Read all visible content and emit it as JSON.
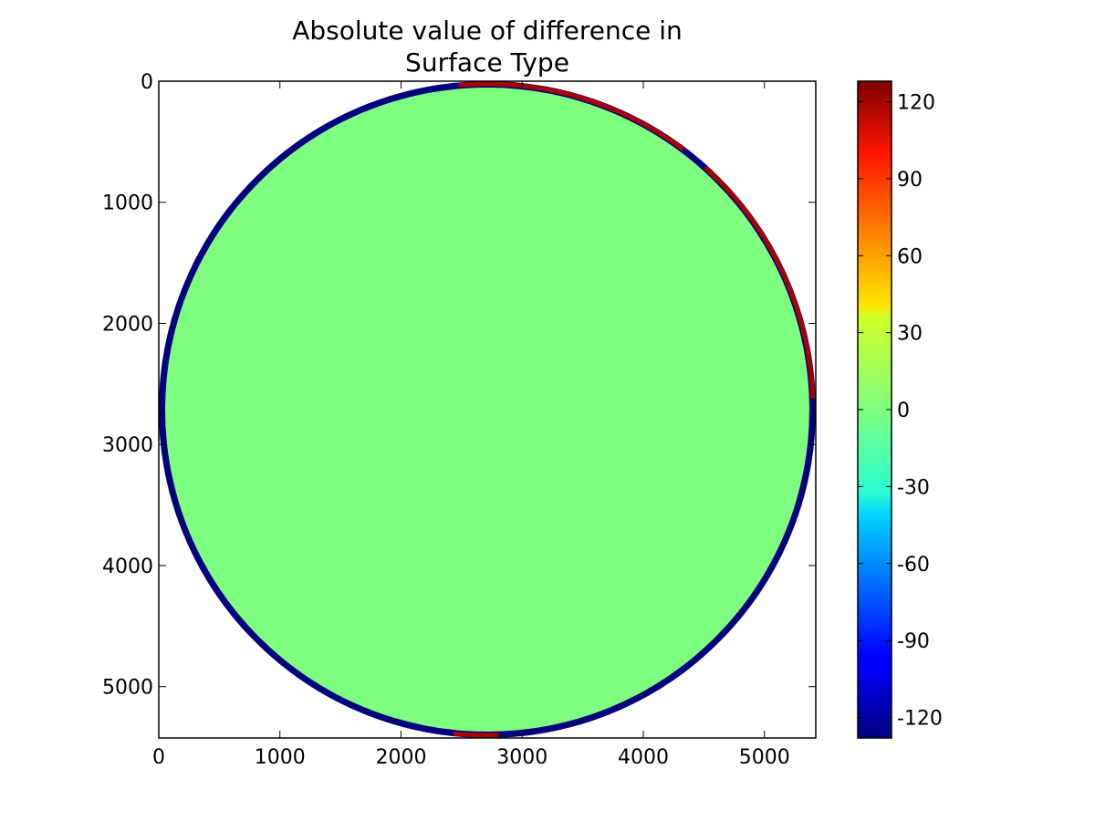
{
  "chart_data": {
    "type": "heatmap",
    "title": "Absolute value of difference in Surface Type",
    "title_lines": [
      "Absolute value of difference in",
      "Surface Type"
    ],
    "xlabel": "",
    "ylabel": "",
    "xlim": [
      0,
      5424
    ],
    "ylim": [
      5424,
      0
    ],
    "xticks": [
      0,
      1000,
      2000,
      3000,
      4000,
      5000
    ],
    "xtick_labels": [
      "0",
      "1000",
      "2000",
      "3000",
      "4000",
      "5000"
    ],
    "yticks": [
      0,
      1000,
      2000,
      3000,
      4000,
      5000
    ],
    "ytick_labels": [
      "0",
      "1000",
      "2000",
      "3000",
      "4000",
      "5000"
    ],
    "colormap": "jet",
    "color_range": [
      -128,
      128
    ],
    "colorbar_ticks": [
      120,
      90,
      60,
      30,
      0,
      -30,
      -60,
      -90,
      -120
    ],
    "colorbar_tick_labels": [
      "120",
      "90",
      "60",
      "30",
      "0",
      "-30",
      "-60",
      "-90",
      "-120"
    ],
    "disk": {
      "center": [
        2712,
        2712
      ],
      "radius": 2712,
      "interior_value": 0,
      "interior_color": "#7fff7f",
      "limb_value": -128,
      "limb_color": "#00007f",
      "limb_positive_value": 128,
      "limb_positive_color": "#a80000",
      "positive_limb_ranges_deg": [
        [
          -95,
          -53
        ],
        [
          -48,
          -2
        ],
        [
          88,
          96
        ]
      ]
    },
    "grid": false
  }
}
